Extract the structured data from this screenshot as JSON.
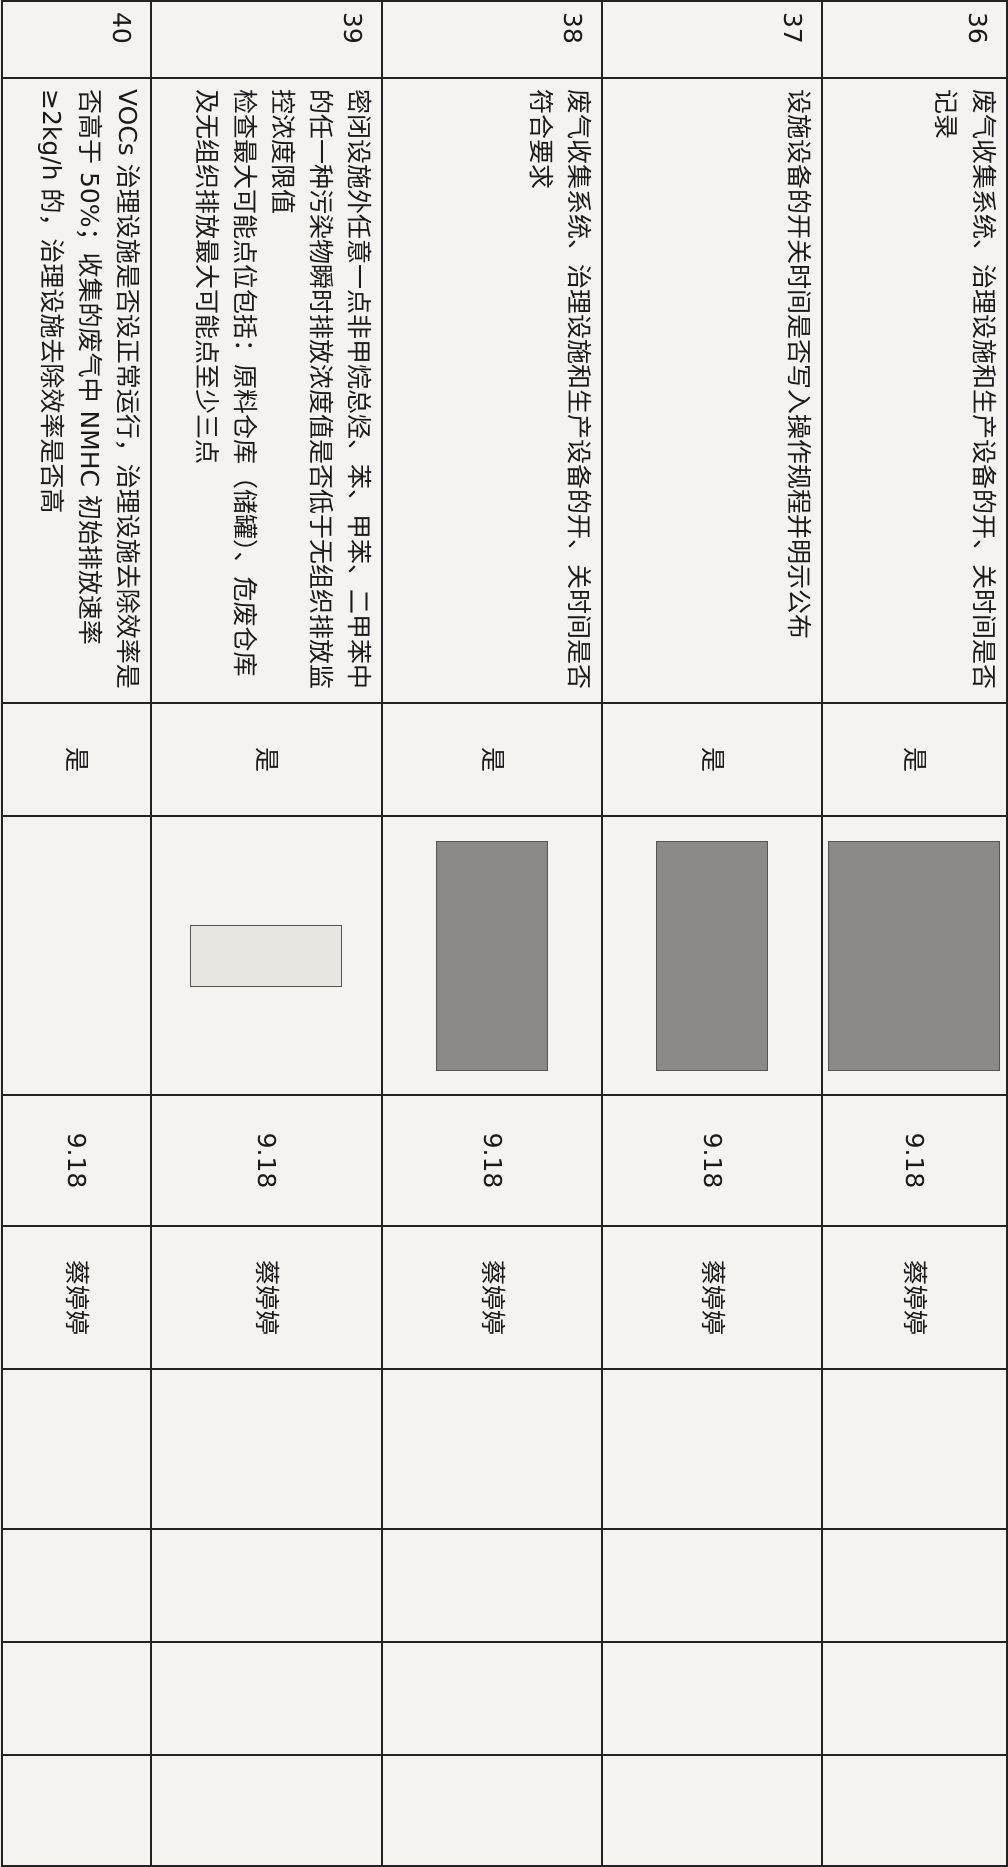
{
  "table": {
    "rows": [
      {
        "no": "36",
        "content": [
          "废气收集系统、治理设施和生产设备的开、关时间是否记录"
        ],
        "check": "是",
        "date": "9.18",
        "person": "蔡婷婷"
      },
      {
        "no": "37",
        "content": [
          "设施设备的开关时间是否写入操作规程并明示公布"
        ],
        "check": "是",
        "date": "9.18",
        "person": "蔡婷婷"
      },
      {
        "no": "38",
        "content": [
          "废气收集系统、治理设施和生产设备的开、关时间是否符合要求"
        ],
        "check": "是",
        "date": "9.18",
        "person": "蔡婷婷"
      },
      {
        "no": "39",
        "content": [
          "密闭设施外任意一点非甲烷总烃、苯、甲苯、二甲苯中的任一种污染物瞬时排放浓度值是否低于无组织排放监控浓度限值",
          "检查最大可能点位包括：原料仓库（储罐）、危废仓库及无组织排放最大可能点至少三点"
        ],
        "check": "是",
        "date": "9.18",
        "person": "蔡婷婷"
      },
      {
        "no": "40",
        "content": [
          "VOCs 治理设施是否设正常运行，治理设施去除效率是否高于 50%；收集的废气中 NMHC 初始排放速率≥2kg/h 的，治理设施去除效率是否高"
        ],
        "check": "是",
        "date": "9.18",
        "person": "蔡婷婷"
      }
    ]
  }
}
